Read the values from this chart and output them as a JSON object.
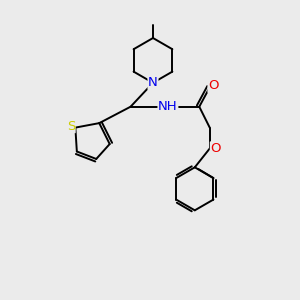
{
  "background_color": "#ebebeb",
  "bond_color": "#000000",
  "atom_colors": {
    "N": "#0000ee",
    "O": "#ee0000",
    "S": "#cccc00",
    "C": "#000000"
  },
  "font_size": 8.5,
  "figsize": [
    3.0,
    3.0
  ],
  "dpi": 100,
  "lw": 1.4
}
